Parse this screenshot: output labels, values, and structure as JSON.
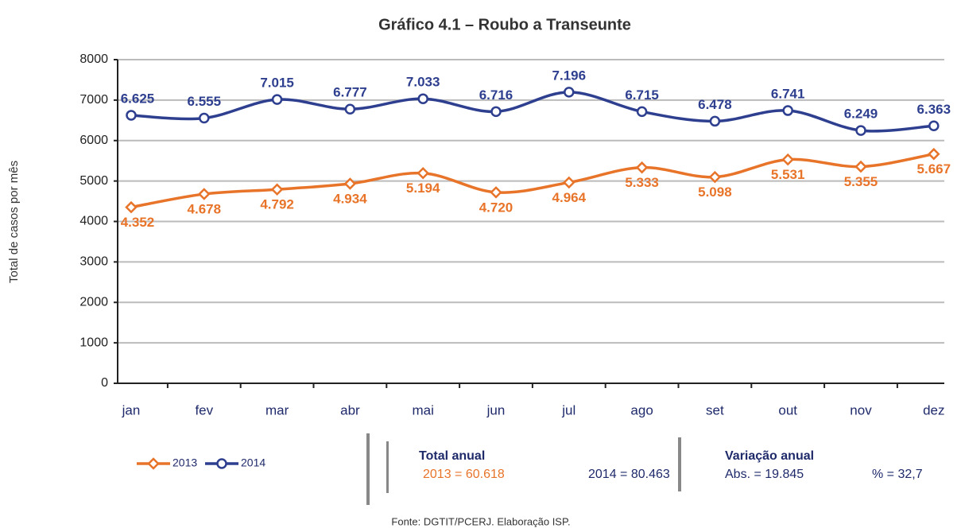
{
  "chart_data": {
    "type": "line",
    "title": "Gráfico 4.1 – Roubo a Transeunte",
    "ylabel": "Total de casos por mês",
    "categories": [
      "jan",
      "fev",
      "mar",
      "abr",
      "mai",
      "jun",
      "jul",
      "ago",
      "set",
      "out",
      "nov",
      "dez"
    ],
    "series": [
      {
        "name": "2013",
        "color": "#e8742a",
        "marker": "diamond",
        "values": [
          4352,
          4678,
          4792,
          4934,
          5194,
          4720,
          4964,
          5333,
          5098,
          5531,
          5355,
          5667
        ],
        "value_labels": [
          "4.352",
          "4.678",
          "4.792",
          "4.934",
          "5.194",
          "4.720",
          "4.964",
          "5.333",
          "5.098",
          "5.531",
          "5.355",
          "5.667"
        ]
      },
      {
        "name": "2014",
        "color": "#2e3f8f",
        "marker": "circle",
        "values": [
          6625,
          6555,
          7015,
          6777,
          7033,
          6716,
          7196,
          6715,
          6478,
          6741,
          6249,
          6363
        ],
        "value_labels": [
          "6.625",
          "6.555",
          "7.015",
          "6.777",
          "7.033",
          "6.716",
          "7.196",
          "6.715",
          "6.478",
          "6.741",
          "6.249",
          "6.363"
        ]
      }
    ],
    "ylim": [
      0,
      8000
    ],
    "yticks": [
      0,
      1000,
      2000,
      3000,
      4000,
      5000,
      6000,
      7000,
      8000
    ],
    "grid": true,
    "legend": "bottom-left",
    "summary": {
      "total_title": "Total anual",
      "total_2013": "2013 = 60.618",
      "total_2014": "2014 = 80.463",
      "variation_title": "Variação anual",
      "variation_abs": "Abs. = 19.845",
      "variation_pct": "% = 32,7"
    },
    "source": "Fonte: DGTIT/PCERJ. Elaboração ISP."
  }
}
